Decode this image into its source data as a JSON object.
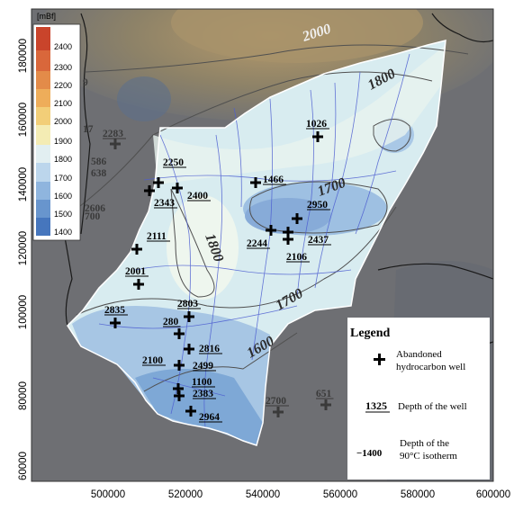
{
  "colorbar": {
    "unit": "[mBf]",
    "ticks": [
      "2400",
      "2300",
      "2200",
      "2100",
      "2000",
      "1900",
      "1800",
      "1700",
      "1600",
      "1500",
      "1400"
    ],
    "colors": [
      "#c9442b",
      "#d9673b",
      "#e38b49",
      "#eead5a",
      "#f2ce78",
      "#f4ecb4",
      "#e2eff1",
      "#bcd6ec",
      "#8fb5de",
      "#6895cd",
      "#4676bd"
    ]
  },
  "axes": {
    "y_ticks": [
      "180000",
      "160000",
      "140000",
      "120000",
      "100000",
      "80000",
      "60000"
    ],
    "x_ticks": [
      "500000",
      "520000",
      "540000",
      "560000",
      "580000",
      "600000"
    ]
  },
  "isotherm_labels": [
    {
      "text": "2000"
    },
    {
      "text": "1800"
    },
    {
      "text": "1700"
    },
    {
      "text": "1800"
    },
    {
      "text": "1700"
    },
    {
      "text": "1600"
    }
  ],
  "wells": [
    {
      "label": "1026"
    },
    {
      "label": "2283"
    },
    {
      "label": "2250"
    },
    {
      "label": "2343"
    },
    {
      "label": "2400"
    },
    {
      "label": "1466"
    },
    {
      "label": "2950"
    },
    {
      "label": "2244"
    },
    {
      "label": "2437"
    },
    {
      "label": "2106"
    },
    {
      "label": "2111"
    },
    {
      "label": "2001"
    },
    {
      "label": "2803"
    },
    {
      "label": "2835"
    },
    {
      "label": "280"
    },
    {
      "label": "2816"
    },
    {
      "label": "2100"
    },
    {
      "label": "2499"
    },
    {
      "label": "1100"
    },
    {
      "label": "2383"
    },
    {
      "label": "2964"
    },
    {
      "label": "2700"
    },
    {
      "label": "651"
    }
  ],
  "edge_labels": [
    "9",
    "17",
    "586",
    "638",
    "700",
    "2606"
  ],
  "legend": {
    "title": "Legend",
    "well_text_1": "Abandoned",
    "well_text_2": "hydrocarbon well",
    "depth_sample": "1325",
    "depth_text": "Depth of the well",
    "iso_sample": "−1400",
    "iso_text_1": "Depth of the",
    "iso_text_2": "90°C isotherm"
  }
}
